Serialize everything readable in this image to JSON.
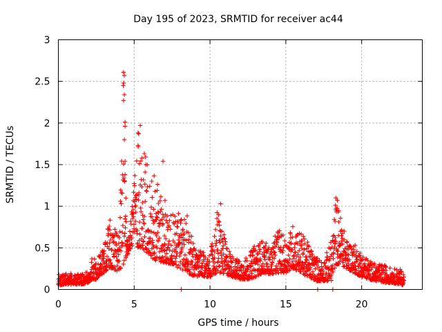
{
  "chart_data": {
    "type": "scatter",
    "title": "Day 195 of 2023, SRMTID for receiver ac44",
    "xlabel": "GPS time / hours",
    "ylabel": "SRMTID / TECUs",
    "xlim": [
      0,
      24
    ],
    "ylim": [
      0,
      3
    ],
    "xticks": [
      0,
      5,
      10,
      15,
      20
    ],
    "xtick_labels": [
      "0",
      "5",
      "10",
      "15",
      "20"
    ],
    "yticks": [
      0,
      0.5,
      1,
      1.5,
      2,
      2.5,
      3
    ],
    "ytick_labels": [
      "0",
      "0.5",
      "1",
      "1.5",
      "2",
      "2.5",
      "3"
    ],
    "grid": true,
    "marker": "plus",
    "color": "#ff0000",
    "series": [
      {
        "name": "SRMTID",
        "envelope": {
          "hours": [
            0,
            0.5,
            1,
            1.5,
            2,
            2.2,
            2.5,
            3,
            3.3,
            3.6,
            4,
            4.3,
            4.5,
            4.8,
            5,
            5.2,
            5.5,
            5.8,
            6,
            6.3,
            6.6,
            7,
            7.5,
            8,
            8.5,
            9,
            9.5,
            10,
            10.5,
            11,
            11.5,
            12,
            12.5,
            13,
            13.5,
            14,
            14.5,
            15,
            15.5,
            16,
            16.5,
            17,
            17.5,
            18,
            18.3,
            18.6,
            19,
            19.5,
            20,
            20.5,
            21,
            21.5,
            22,
            22.5,
            22.8
          ],
          "srmtid_upper": [
            0.2,
            0.2,
            0.2,
            0.18,
            0.22,
            0.4,
            0.35,
            0.5,
            0.8,
            0.9,
            0.6,
            2.6,
            0.7,
            0.9,
            1.6,
            1.95,
            1.7,
            1.6,
            1.4,
            1.55,
            1.2,
            1.1,
            0.95,
            0.95,
            0.9,
            0.5,
            0.45,
            0.4,
            1.0,
            0.6,
            0.4,
            0.35,
            0.4,
            0.55,
            0.6,
            0.5,
            0.75,
            0.6,
            0.8,
            0.7,
            0.55,
            0.4,
            0.35,
            0.6,
            1.1,
            0.9,
            0.6,
            0.55,
            0.45,
            0.35,
            0.3,
            0.3,
            0.25,
            0.25,
            0.2
          ],
          "srmtid_lower": [
            0.05,
            0.06,
            0.06,
            0.06,
            0.08,
            0.12,
            0.12,
            0.2,
            0.25,
            0.25,
            0.2,
            0.3,
            0.4,
            0.5,
            0.55,
            0.5,
            0.5,
            0.45,
            0.4,
            0.35,
            0.35,
            0.3,
            0.3,
            0.25,
            0.2,
            0.15,
            0.15,
            0.15,
            0.2,
            0.18,
            0.15,
            0.12,
            0.12,
            0.15,
            0.2,
            0.18,
            0.2,
            0.2,
            0.25,
            0.2,
            0.15,
            0.1,
            0.1,
            0.1,
            0.3,
            0.3,
            0.25,
            0.2,
            0.15,
            0.12,
            0.1,
            0.08,
            0.08,
            0.06,
            0.05
          ]
        },
        "notable_points": [
          {
            "x": 4.3,
            "y": 2.61
          },
          {
            "x": 4.35,
            "y": 2.57
          },
          {
            "x": 4.3,
            "y": 2.48
          },
          {
            "x": 4.35,
            "y": 2.34
          },
          {
            "x": 4.3,
            "y": 2.27
          },
          {
            "x": 4.4,
            "y": 2.01
          },
          {
            "x": 4.4,
            "y": 1.96
          },
          {
            "x": 4.35,
            "y": 1.8
          },
          {
            "x": 4.4,
            "y": 1.54
          },
          {
            "x": 4.4,
            "y": 1.38
          },
          {
            "x": 5.4,
            "y": 1.97
          },
          {
            "x": 5.3,
            "y": 1.87
          },
          {
            "x": 5.25,
            "y": 1.73
          },
          {
            "x": 6.9,
            "y": 1.54
          },
          {
            "x": 18.3,
            "y": 1.1
          },
          {
            "x": 18.4,
            "y": 1.07
          },
          {
            "x": 10.7,
            "y": 1.03
          },
          {
            "x": 8.1,
            "y": 0.0
          },
          {
            "x": 18.1,
            "y": 0.0
          },
          {
            "x": 17.1,
            "y": 0.0
          }
        ]
      }
    ]
  }
}
